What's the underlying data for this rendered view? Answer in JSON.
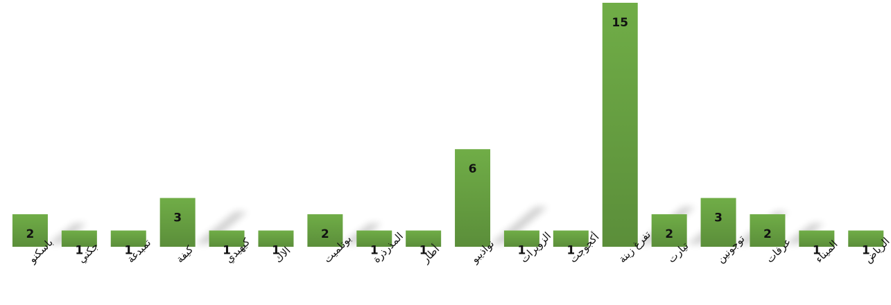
{
  "chart_data": {
    "type": "bar",
    "title": "",
    "xlabel": "",
    "ylabel": "",
    "grid": false,
    "legend": "none",
    "ylim": [
      0,
      15
    ],
    "color_top": "#70AD47",
    "color_bottom": "#5B8E3A",
    "categories": [
      "باسكنو",
      "جكني",
      "تمبدغة",
      "كيفة",
      "كيهيدي",
      "الاك",
      "بوتلميت",
      "المذرذرة",
      "أطار",
      "نواذيبو",
      "الزويرات",
      "أكجوجت",
      "تفرغ زينة",
      "تيارت",
      "توجونين",
      "عرفات",
      "الميناء",
      "الرياض"
    ],
    "values": [
      2,
      1,
      1,
      3,
      1,
      1,
      2,
      1,
      1,
      6,
      1,
      1,
      15,
      2,
      3,
      2,
      1,
      1
    ]
  }
}
